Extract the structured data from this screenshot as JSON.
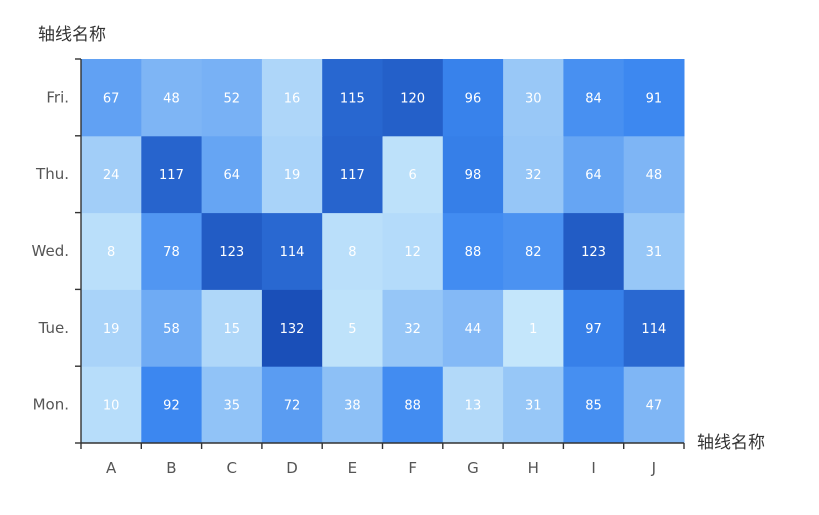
{
  "chart_data": {
    "type": "heatmap",
    "x_axis_name": "轴线名称",
    "y_axis_name": "轴线名称",
    "x_categories": [
      "A",
      "B",
      "C",
      "D",
      "E",
      "F",
      "G",
      "H",
      "I",
      "J"
    ],
    "y_categories": [
      "Mon.",
      "Tue.",
      "Wed.",
      "Thu.",
      "Fri."
    ],
    "values": [
      [
        10,
        92,
        35,
        72,
        38,
        88,
        13,
        31,
        85,
        47
      ],
      [
        19,
        58,
        15,
        132,
        5,
        32,
        44,
        1,
        97,
        114
      ],
      [
        8,
        78,
        123,
        114,
        8,
        12,
        88,
        82,
        123,
        31
      ],
      [
        24,
        117,
        64,
        19,
        117,
        6,
        98,
        32,
        64,
        48
      ],
      [
        67,
        48,
        52,
        16,
        115,
        120,
        96,
        30,
        84,
        91
      ]
    ],
    "value_range": [
      0,
      132
    ],
    "color_scale": {
      "low": "#c6e7fb",
      "mid": "#3b87f0",
      "high": "#1a4fb8"
    },
    "grid": false,
    "legend": "none"
  }
}
